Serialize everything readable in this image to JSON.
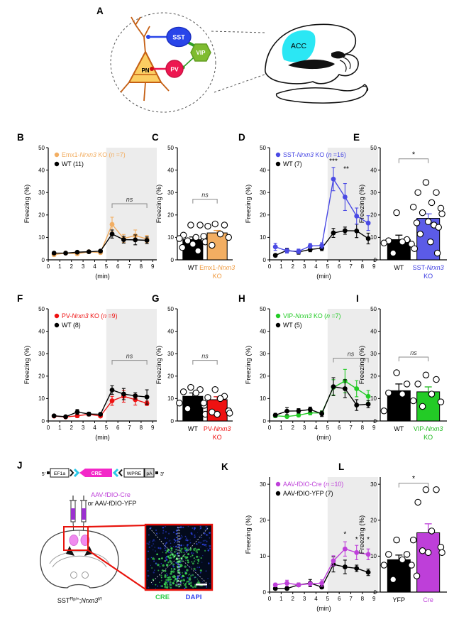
{
  "panel_letters": {
    "A": "A",
    "B": "B",
    "C": "C",
    "D": "D",
    "E": "E",
    "F": "F",
    "G": "G",
    "H": "H",
    "I": "I",
    "J": "J",
    "K": "K",
    "L": "L"
  },
  "colors": {
    "emx1_orange": "#F2AE62",
    "sst_blue": "#4A4AE4",
    "pv_red": "#EE1111",
    "vip_green": "#23CB26",
    "cre_magenta": "#BE3FD9",
    "acc_cyan": "#2BE7F4",
    "shade_gray": "#ECECEC",
    "construct_cre_pink": "#F327C8",
    "inset_green": "#3BD153",
    "inset_blue": "#2B3FD4",
    "pn_fill": "#FBCE62",
    "pn_stroke": "#C55F13",
    "sst_cell": "#2945E9",
    "pv_cell": "#ED1650",
    "vip_cell": "#7FBC30"
  },
  "panelA": {
    "sst": "SST",
    "vip": "VIP",
    "pv": "PV",
    "pn": "PN",
    "acc": "ACC"
  },
  "panelJ": {
    "construct": {
      "five_prime": "5′",
      "ef1a": "EF1a",
      "cre": "CRE",
      "wpre": "WPRE",
      "pa": "pA",
      "three_prime": "3′"
    },
    "virus_line1": "AAV-fDIO-Cre",
    "virus_line2": "or AAV-fDIO-YFP",
    "genotype": [
      {
        "t": "SST"
      },
      {
        "t": "Flp/+",
        "sup": true
      },
      {
        "t": ";"
      },
      {
        "t": "Nrxn3",
        "i": true
      },
      {
        "t": "f/f",
        "sup": true
      }
    ],
    "inset": {
      "cre_label": "CRE",
      "dapi_label": "DAPI"
    }
  },
  "chart_data": [
    {
      "id": "B",
      "type": "line",
      "ylabel": "Freezing (%)",
      "xlabel": "(min)",
      "xlim": [
        0,
        9.35
      ],
      "ylim": [
        0,
        50
      ],
      "yticks": [
        0,
        10,
        20,
        30,
        40,
        50
      ],
      "xticks": [
        0,
        1,
        2,
        3,
        4,
        5,
        6,
        7,
        8,
        9
      ],
      "shade_x": [
        5,
        9.35
      ],
      "x": [
        0.5,
        1.5,
        2.5,
        3.5,
        4.5,
        5.5,
        6.5,
        7.5,
        8.5
      ],
      "draw_order": [
        0,
        1
      ],
      "series": [
        {
          "label": [
            {
              "t": "Emx1-"
            },
            {
              "t": "Nrxn3",
              "i": true
            },
            {
              "t": " KO ("
            },
            {
              "t": "n",
              "i": true
            },
            {
              "t": " =7)"
            }
          ],
          "color": "#F2AE62",
          "values": [
            2.3,
            3,
            2.7,
            3.6,
            3.2,
            15.8,
            9.5,
            10.8,
            9.3
          ],
          "err": [
            0.7,
            0.7,
            0.7,
            0.7,
            0.7,
            3.2,
            1.8,
            2.5,
            1.6
          ]
        },
        {
          "label": [
            {
              "t": "WT (11)"
            }
          ],
          "color": "#000000",
          "values": [
            3,
            3,
            3.4,
            3.6,
            3.9,
            11.5,
            9,
            8.9,
            8.7
          ],
          "err": [
            0.4,
            0.4,
            0.5,
            0.5,
            0.6,
            1.8,
            1.5,
            2.2,
            1.5
          ]
        }
      ],
      "annotations": [
        {
          "type": "bracket",
          "x1": 5.5,
          "x2": 8.5,
          "y": 25,
          "label": "ns"
        }
      ]
    },
    {
      "id": "C",
      "type": "bar",
      "ylabel": "Freezing (%)",
      "ylim": [
        0,
        50
      ],
      "yticks": [
        0,
        10,
        20,
        30,
        40,
        50
      ],
      "categories": [
        {
          "parts": [
            {
              "t": "WT"
            }
          ],
          "line2": null,
          "color": "#000000"
        },
        {
          "parts": [
            {
              "t": "Emx1-"
            },
            {
              "t": "Nrxn3",
              "i": true
            }
          ],
          "line2": "KO",
          "color": "#EF9A3F"
        }
      ],
      "bars": [
        {
          "value": 9,
          "sem": 1.2,
          "fill": "#000000",
          "sem_color": "#000000",
          "dots": [
            15.5,
            15.5,
            11,
            10,
            9.5,
            9,
            8.5,
            8,
            7,
            5.5,
            4
          ]
        },
        {
          "value": 12,
          "sem": 1.1,
          "fill": "#F2AE62",
          "sem_color": "#E8973F",
          "dots": [
            16,
            15.5,
            15,
            11.5,
            10.5,
            10,
            6.5
          ]
        }
      ],
      "annotations": [
        {
          "type": "bracket",
          "x1": 0,
          "x2": 1,
          "y": 27,
          "label": "ns"
        }
      ]
    },
    {
      "id": "D",
      "type": "line",
      "ylabel": "Freezing (%)",
      "xlabel": "(min)",
      "xlim": [
        0,
        9.35
      ],
      "ylim": [
        0,
        50
      ],
      "yticks": [
        0,
        10,
        20,
        30,
        40,
        50
      ],
      "xticks": [
        0,
        1,
        2,
        3,
        4,
        5,
        6,
        7,
        8,
        9
      ],
      "shade_x": [
        5,
        9.35
      ],
      "x": [
        0.5,
        1.5,
        2.5,
        3.5,
        4.5,
        5.5,
        6.5,
        7.5,
        8.5
      ],
      "draw_order": [
        1,
        0
      ],
      "series": [
        {
          "label": [
            {
              "t": "SST-"
            },
            {
              "t": "Nrxn3",
              "i": true
            },
            {
              "t": " KO ("
            },
            {
              "t": "n",
              "i": true
            },
            {
              "t": " =16)"
            }
          ],
          "color": "#4A4AE4",
          "values": [
            5.8,
            4,
            3.8,
            6.2,
            6.4,
            36,
            28,
            19.5,
            16.4
          ],
          "err": [
            1.6,
            1,
            1,
            1.1,
            1.2,
            5.2,
            6,
            3.6,
            3.3
          ]
        },
        {
          "label": [
            {
              "t": "WT (7)"
            }
          ],
          "color": "#000000",
          "values": [
            2,
            4.2,
            3.5,
            4.6,
            5.2,
            12,
            13,
            12.9,
            9.5
          ],
          "err": [
            0.7,
            1,
            1,
            1,
            1.1,
            2,
            1.6,
            3,
            2.4
          ]
        }
      ],
      "annotations": [
        {
          "type": "star",
          "x": 5.5,
          "y": 43,
          "label": "***"
        },
        {
          "type": "star",
          "x": 6.6,
          "y": 39.5,
          "label": "**"
        }
      ]
    },
    {
      "id": "E",
      "type": "bar",
      "ylabel": "Freezing (%)",
      "ylim": [
        0,
        50
      ],
      "yticks": [
        0,
        10,
        20,
        30,
        40,
        50
      ],
      "categories": [
        {
          "parts": [
            {
              "t": "WT"
            }
          ],
          "line2": null,
          "color": "#000000"
        },
        {
          "parts": [
            {
              "t": "SST-"
            },
            {
              "t": "Nrxn3",
              "i": true
            }
          ],
          "line2": "KO",
          "color": "#3A3AE0"
        }
      ],
      "bars": [
        {
          "value": 9,
          "sem": 2,
          "fill": "#000000",
          "sem_color": "#000000",
          "dots": [
            21,
            9,
            8.5,
            8,
            7.5,
            7,
            3
          ]
        },
        {
          "value": 18.5,
          "sem": 2,
          "fill": "#5B5BE7",
          "sem_color": "#5B5BE7",
          "dots": [
            34.5,
            30,
            30,
            25.5,
            23.5,
            23,
            21,
            20.5,
            17,
            16.5,
            15.5,
            14.5,
            11.5,
            8,
            5,
            3
          ]
        }
      ],
      "annotations": [
        {
          "type": "bracket",
          "x1": 0,
          "x2": 1,
          "y": 45,
          "label": "*"
        }
      ]
    },
    {
      "id": "F",
      "type": "line",
      "ylabel": "Freezing (%)",
      "xlabel": "(min)",
      "xlim": [
        0,
        9.35
      ],
      "ylim": [
        0,
        50
      ],
      "yticks": [
        0,
        10,
        20,
        30,
        40,
        50
      ],
      "xticks": [
        0,
        1,
        2,
        3,
        4,
        5,
        6,
        7,
        8,
        9
      ],
      "shade_x": [
        5,
        9.35
      ],
      "x": [
        0.5,
        1.5,
        2.5,
        3.5,
        4.5,
        5.5,
        6.5,
        7.5,
        8.5
      ],
      "draw_order": [
        0,
        1
      ],
      "series": [
        {
          "label": [
            {
              "t": "PV-"
            },
            {
              "t": "Nrxn3",
              "i": true
            },
            {
              "t": " KO ("
            },
            {
              "t": "n",
              "i": true
            },
            {
              "t": " =9)"
            }
          ],
          "color": "#EE1111",
          "values": [
            2.2,
            1.8,
            2.3,
            3,
            2.2,
            9,
            11,
            9.5,
            7.9
          ],
          "err": [
            0.5,
            0.5,
            0.8,
            0.7,
            0.5,
            2,
            2.6,
            2.4,
            1
          ]
        },
        {
          "label": [
            {
              "t": "WT (8)"
            }
          ],
          "color": "#000000",
          "values": [
            2.3,
            1.9,
            4,
            3.1,
            3,
            13.8,
            12,
            11.2,
            10.7
          ],
          "err": [
            0.5,
            0.5,
            1.1,
            0.8,
            0.6,
            1.9,
            2.5,
            1.4,
            3.2
          ]
        }
      ],
      "annotations": [
        {
          "type": "bracket",
          "x1": 5.5,
          "x2": 8.5,
          "y": 27,
          "label": "ns"
        }
      ]
    },
    {
      "id": "G",
      "type": "bar",
      "ylabel": "Freezing (%)",
      "ylim": [
        0,
        50
      ],
      "yticks": [
        0,
        10,
        20,
        30,
        40,
        50
      ],
      "categories": [
        {
          "parts": [
            {
              "t": "WT"
            }
          ],
          "line2": null,
          "color": "#000000"
        },
        {
          "parts": [
            {
              "t": "PV-"
            },
            {
              "t": "Nrxn3",
              "i": true
            }
          ],
          "line2": "KO",
          "color": "#EE1111"
        }
      ],
      "bars": [
        {
          "value": 11,
          "sem": 1.5,
          "fill": "#000000",
          "sem_color": "#000000",
          "dots": [
            15,
            14,
            13,
            12.5,
            8,
            7,
            5.5,
            3
          ]
        },
        {
          "value": 9.5,
          "sem": 1.3,
          "fill": "#EE1111",
          "sem_color": "#D40F0F",
          "dots": [
            14,
            11,
            10.5,
            10,
            8,
            4.5,
            4,
            3.5,
            3
          ]
        }
      ],
      "annotations": [
        {
          "type": "bracket",
          "x1": 0,
          "x2": 1,
          "y": 27,
          "label": "ns"
        }
      ]
    },
    {
      "id": "H",
      "type": "line",
      "ylabel": "Freezing (%)",
      "xlabel": "(min)",
      "xlim": [
        0,
        9.35
      ],
      "ylim": [
        0,
        50
      ],
      "yticks": [
        0,
        10,
        20,
        30,
        40,
        50
      ],
      "xticks": [
        0,
        1,
        2,
        3,
        4,
        5,
        6,
        7,
        8,
        9
      ],
      "shade_x": [
        5,
        9.35
      ],
      "x": [
        0.5,
        1.5,
        2.5,
        3.5,
        4.5,
        5.5,
        6.5,
        7.5,
        8.5
      ],
      "draw_order": [
        0,
        1
      ],
      "series": [
        {
          "label": [
            {
              "t": "VIP-"
            },
            {
              "t": "Nrxn3",
              "i": true
            },
            {
              "t": " KO ("
            },
            {
              "t": "n",
              "i": true
            },
            {
              "t": " =7)"
            }
          ],
          "color": "#23CB26",
          "values": [
            2.3,
            2,
            2.6,
            3.6,
            3.6,
            15,
            17.8,
            14.4,
            11
          ],
          "err": [
            0.8,
            0.5,
            0.6,
            0.9,
            0.9,
            3.4,
            5.2,
            3.6,
            2.6
          ]
        },
        {
          "label": [
            {
              "t": "WT (5)"
            }
          ],
          "color": "#000000",
          "values": [
            2.6,
            4.4,
            4.5,
            5.1,
            3.2,
            15.3,
            14.4,
            7.1,
            7.5
          ],
          "err": [
            0.8,
            1.6,
            1,
            1.1,
            1.2,
            4,
            4,
            2.4,
            1.6
          ]
        }
      ],
      "annotations": [
        {
          "type": "bracket",
          "x1": 5.5,
          "x2": 8.5,
          "y": 28,
          "label": "ns"
        }
      ]
    },
    {
      "id": "I",
      "type": "bar",
      "ylabel": "Freezing (%)",
      "ylim": [
        0,
        50
      ],
      "yticks": [
        0,
        10,
        20,
        30,
        40,
        50
      ],
      "categories": [
        {
          "parts": [
            {
              "t": "WT"
            }
          ],
          "line2": null,
          "color": "#000000"
        },
        {
          "parts": [
            {
              "t": "VIP-"
            },
            {
              "t": "Nrxn3",
              "i": true
            }
          ],
          "line2": "KO",
          "color": "#1DB91D"
        }
      ],
      "bars": [
        {
          "value": 13.5,
          "sem": 3,
          "fill": "#000000",
          "sem_color": "#000000",
          "dots": [
            21.5,
            16.5,
            12.5,
            12,
            4.5
          ]
        },
        {
          "value": 13,
          "sem": 2.2,
          "fill": "#23CB26",
          "sem_color": "#1DB91D",
          "dots": [
            20.5,
            18.5,
            16.5,
            12,
            9,
            8.5,
            6.5
          ]
        }
      ],
      "annotations": [
        {
          "type": "bracket",
          "x1": 0,
          "x2": 1,
          "y": 28.5,
          "label": "ns"
        }
      ]
    },
    {
      "id": "K",
      "type": "line",
      "ylabel": "Freezing (%)",
      "xlabel": "(min)",
      "xlim": [
        0,
        9.35
      ],
      "ylim": [
        0,
        32
      ],
      "yticks": [
        0,
        10,
        20,
        30
      ],
      "xticks": [
        0,
        1,
        2,
        3,
        4,
        5,
        6,
        7,
        8,
        9
      ],
      "shade_x": [
        5,
        9.35
      ],
      "x": [
        0.5,
        1.5,
        2.5,
        3.5,
        4.5,
        5.5,
        6.5,
        7.5,
        8.5
      ],
      "draw_order": [
        1,
        0
      ],
      "series": [
        {
          "label": [
            {
              "t": "AAV-fDIO-Cre ("
            },
            {
              "t": "n",
              "i": true
            },
            {
              "t": " =10)"
            }
          ],
          "color": "#BE3FD9",
          "values": [
            2,
            2.5,
            2,
            2.3,
            2.5,
            8.7,
            12,
            11,
            10.5
          ],
          "err": [
            0.5,
            0.8,
            0.5,
            0.5,
            0.9,
            1.4,
            2,
            2,
            1.5
          ]
        },
        {
          "label": [
            {
              "t": "AAV-fDIO-YFP (7)"
            }
          ],
          "color": "#000000",
          "values": [
            1,
            1,
            2,
            2.5,
            1.4,
            7.7,
            7,
            6.6,
            5.5
          ],
          "err": [
            0.4,
            0.4,
            0.5,
            1,
            0.5,
            2.1,
            1.9,
            0.9,
            0.9
          ]
        }
      ],
      "annotations": [
        {
          "type": "star",
          "x": 6.5,
          "y": 15.5,
          "label": "*"
        },
        {
          "type": "star",
          "x": 7.5,
          "y": 14,
          "label": "*"
        },
        {
          "type": "star",
          "x": 8.5,
          "y": 14,
          "label": "*"
        }
      ]
    },
    {
      "id": "L",
      "type": "bar",
      "ylabel": "Freezing (%)",
      "ylim": [
        0,
        32
      ],
      "yticks": [
        0,
        10,
        20,
        30
      ],
      "categories": [
        {
          "parts": [
            {
              "t": "YFP"
            }
          ],
          "line2": null,
          "color": "#000000"
        },
        {
          "parts": [
            {
              "t": "Cre"
            }
          ],
          "line2": null,
          "color": "#BE3FD9"
        }
      ],
      "bars": [
        {
          "value": 9,
          "sem": 1.3,
          "fill": "#000000",
          "sem_color": "#000000",
          "dots": [
            14.5,
            10.5,
            10.5,
            9,
            7.5,
            7.5,
            3.5
          ]
        },
        {
          "value": 16.5,
          "sem": 2.5,
          "fill": "#BE3FD9",
          "sem_color": "#BE3FD9",
          "dots": [
            28.5,
            28.5,
            25,
            17,
            14.5,
            12.5,
            11.5,
            11,
            11,
            4.5
          ]
        }
      ],
      "annotations": [
        {
          "type": "bracket",
          "x1": 0,
          "x2": 1,
          "y": 30.3,
          "label": "*"
        }
      ]
    }
  ]
}
